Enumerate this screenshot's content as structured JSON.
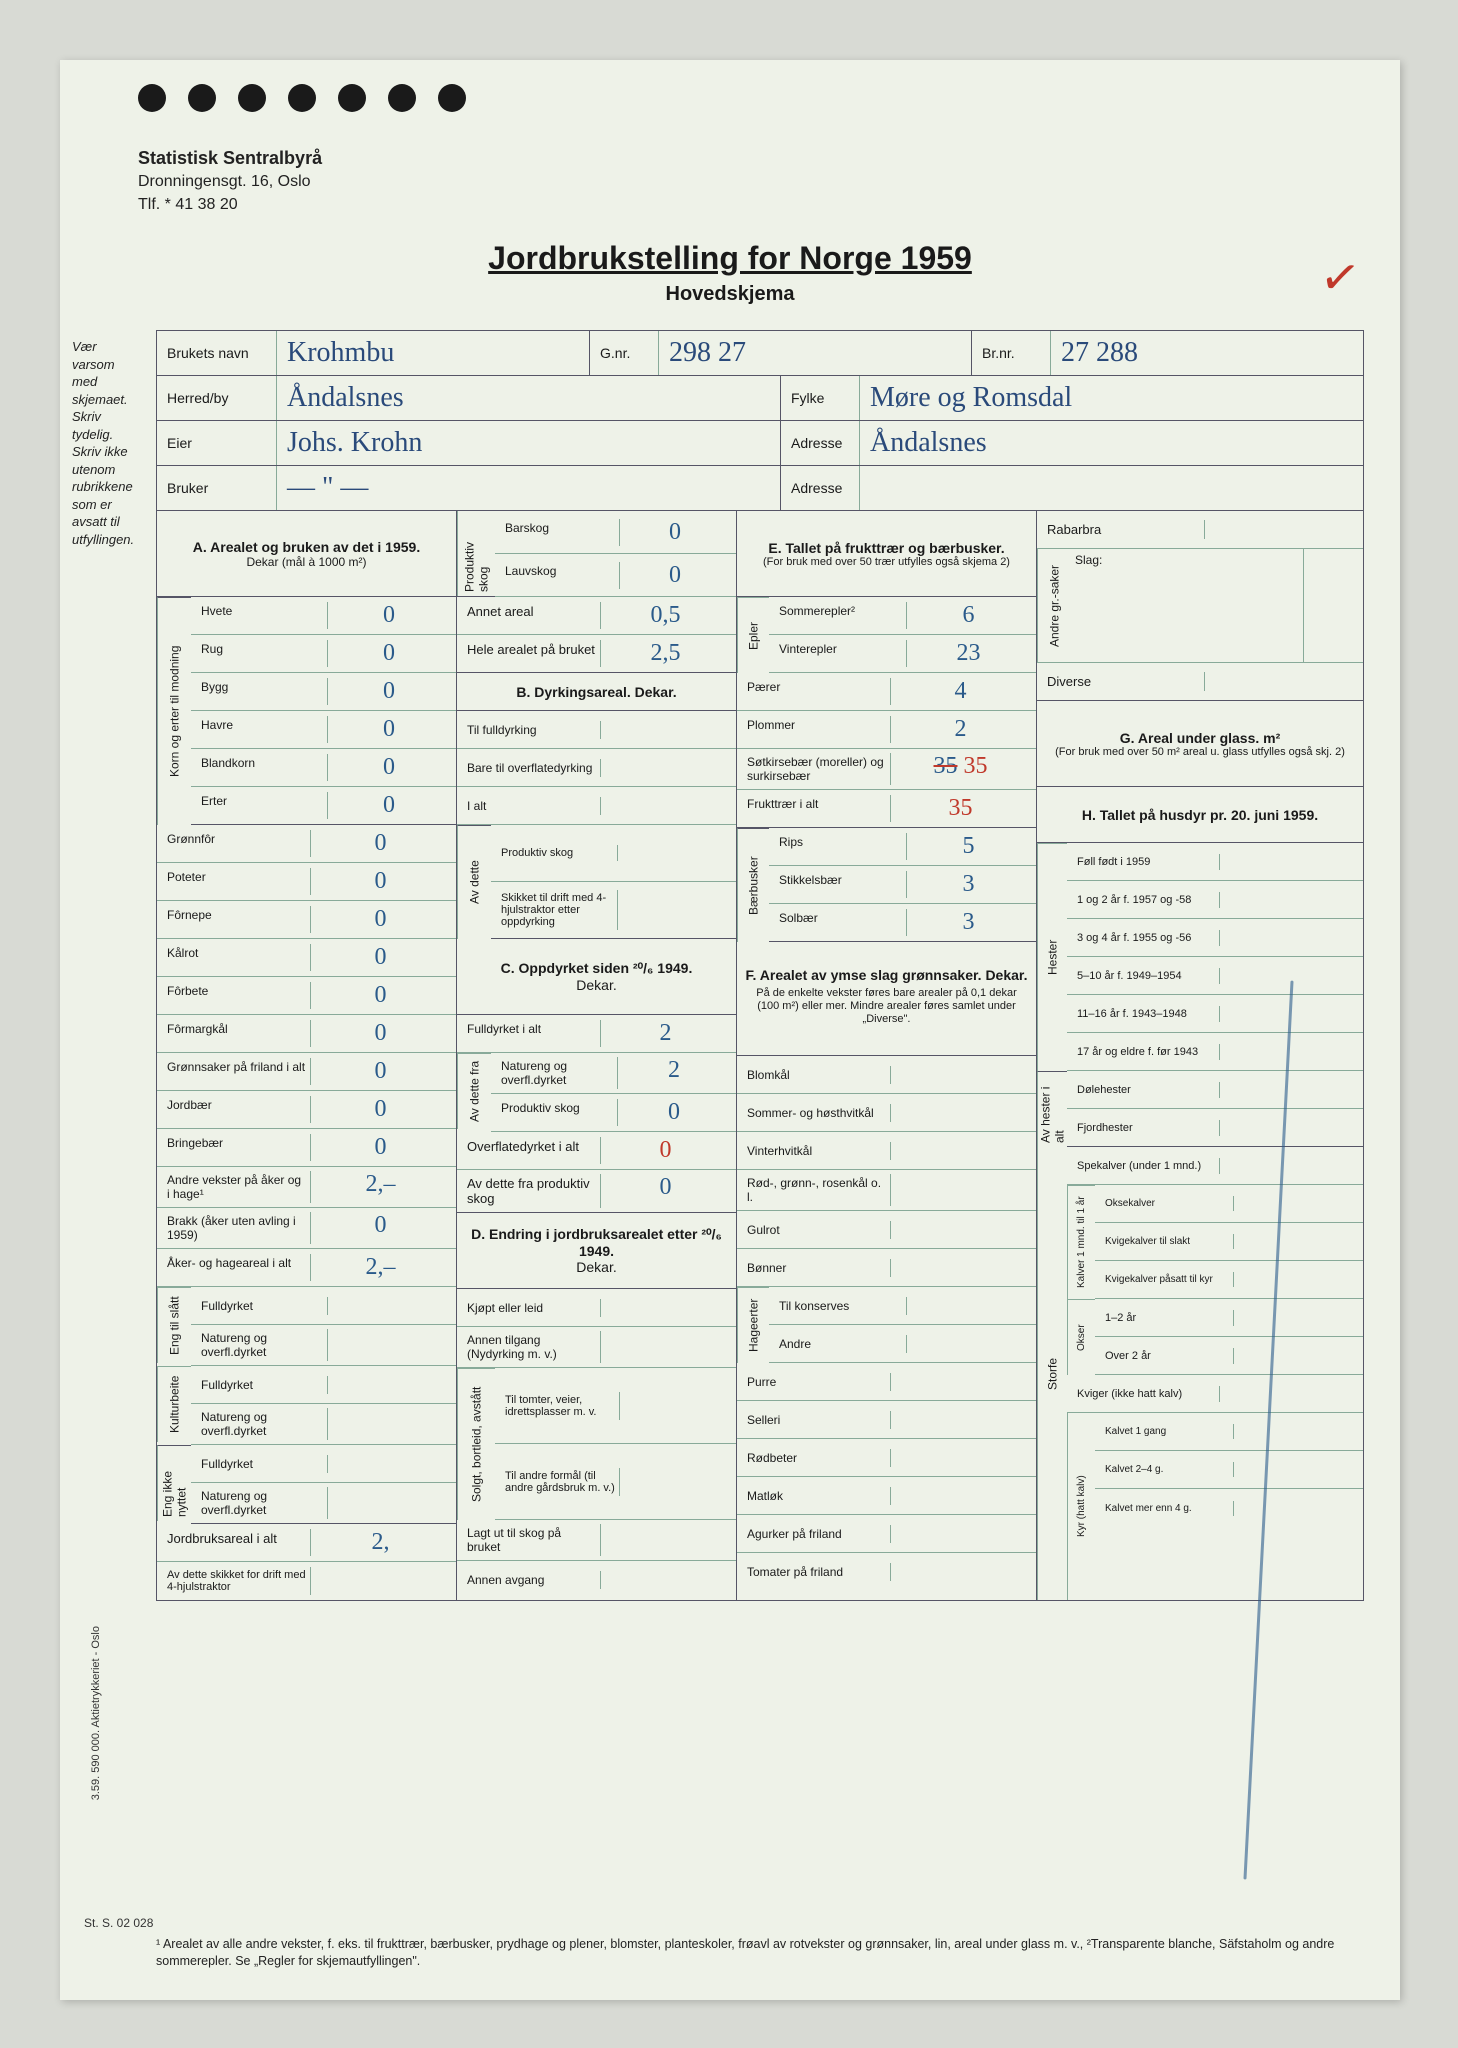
{
  "letterhead": {
    "org": "Statistisk Sentralbyrå",
    "addr": "Dronningensgt. 16, Oslo",
    "tel": "Tlf. * 41 38 20"
  },
  "title": {
    "main": "Jordbrukstelling for Norge 1959",
    "sub": "Hovedskjema"
  },
  "side_note": "Vær varsom med skjemaet.\nSkriv tydelig.\nSkriv ikke utenom rubrikkene som er avsatt til utfyllingen.",
  "header": {
    "brukets_navn_l": "Brukets navn",
    "brukets_navn": "Krohmbu",
    "gnr_l": "G.nr.",
    "gnr": "298  27",
    "brnr_l": "Br.nr.",
    "brnr": "27  288",
    "herred_l": "Herred/by",
    "herred": "Åndalsnes",
    "fylke_l": "Fylke",
    "fylke": "Møre og Romsdal",
    "eier_l": "Eier",
    "eier": "Johs. Krohn",
    "adresse_l": "Adresse",
    "adresse1": "Åndalsnes",
    "bruker_l": "Bruker",
    "bruker": "— \" —",
    "adresse2_l": "Adresse",
    "adresse2": ""
  },
  "A": {
    "head": "A. Arealet og bruken av det i 1959.",
    "sub": "Dekar (mål à 1000 m²)",
    "korn_label": "Korn og erter til modning",
    "rows": [
      {
        "l": "Hvete",
        "v": "0"
      },
      {
        "l": "Rug",
        "v": "0"
      },
      {
        "l": "Bygg",
        "v": "0"
      },
      {
        "l": "Havre",
        "v": "0"
      },
      {
        "l": "Blandkorn",
        "v": "0"
      },
      {
        "l": "Erter",
        "v": "0"
      }
    ],
    "rows2": [
      {
        "l": "Grønnfôr",
        "v": "0"
      },
      {
        "l": "Poteter",
        "v": "0"
      },
      {
        "l": "Fôrnepe",
        "v": "0"
      },
      {
        "l": "Kålrot",
        "v": "0"
      },
      {
        "l": "Fôrbete",
        "v": "0"
      },
      {
        "l": "Fôrmargkål",
        "v": "0"
      },
      {
        "l": "Grønnsaker på friland i alt",
        "v": "0"
      },
      {
        "l": "Jordbær",
        "v": "0"
      },
      {
        "l": "Bringebær",
        "v": "0"
      },
      {
        "l": "Andre vekster på åker og i hage¹",
        "v": "2,–"
      },
      {
        "l": "Brakk (åker uten avling i 1959)",
        "v": "0"
      },
      {
        "l": "Åker- og hageareal i alt",
        "v": "2,–"
      }
    ],
    "eng_label": "Eng til slått",
    "eng": [
      {
        "l": "Fulldyrket",
        "v": ""
      },
      {
        "l": "Natureng og overfl.dyrket",
        "v": ""
      }
    ],
    "kultur_label": "Kulturbeite",
    "kultur": [
      {
        "l": "Fulldyrket",
        "v": ""
      },
      {
        "l": "Natureng og overfl.dyrket",
        "v": ""
      }
    ],
    "ikke_label": "Eng ikke nyttet",
    "ikke": [
      {
        "l": "Fulldyrket",
        "v": ""
      },
      {
        "l": "Natureng og overfl.dyrket",
        "v": ""
      }
    ],
    "jordbruk": {
      "l": "Jordbruksareal i alt",
      "v": "2,"
    },
    "skikket": {
      "l": "Av dette skikket for drift med 4-hjulstraktor",
      "v": ""
    }
  },
  "Prod": {
    "label": "Produktiv skog",
    "rows": [
      {
        "l": "Barskog",
        "v": "0"
      },
      {
        "l": "Lauvskog",
        "v": "0"
      }
    ],
    "annet": {
      "l": "Annet areal",
      "v": "0,5"
    },
    "hele": {
      "l": "Hele arealet på bruket",
      "v": "2,5"
    }
  },
  "B": {
    "head": "B. Dyrkingsareal. Dekar.",
    "rows": [
      {
        "l": "Til fulldyrking",
        "v": ""
      },
      {
        "l": "Bare til overflatedyrking",
        "v": ""
      },
      {
        "l": "I alt",
        "v": ""
      }
    ],
    "av_label": "Av dette",
    "av": [
      {
        "l": "Produktiv skog",
        "v": ""
      },
      {
        "l": "Skikket til drift med 4-hjulstraktor etter oppdyrking",
        "v": ""
      }
    ]
  },
  "C": {
    "head": "C. Oppdyrket siden ²⁰/₆ 1949.",
    "sub": "Dekar.",
    "rows": [
      {
        "l": "Fulldyrket i alt",
        "v": "2"
      }
    ],
    "av_label": "Av dette fra",
    "av": [
      {
        "l": "Natureng og overfl.dyrket",
        "v": "2"
      },
      {
        "l": "Produktiv skog",
        "v": "0"
      }
    ],
    "over": {
      "l": "Overflatedyrket i alt",
      "v": "0"
    },
    "avprod": {
      "l": "Av dette fra produktiv skog",
      "v": "0"
    }
  },
  "D": {
    "head": "D. Endring i jordbruksarealet etter ²⁰/₆ 1949.",
    "sub": "Dekar.",
    "rows": [
      {
        "l": "Kjøpt eller leid",
        "v": ""
      },
      {
        "l": "Annen tilgang (Nydyrking m. v.)",
        "v": ""
      }
    ],
    "solgt_label": "Solgt, bortleid, avstått",
    "solgt": [
      {
        "l": "Til tomter, veier, idrettsplasser m. v.",
        "v": ""
      },
      {
        "l": "Til andre formål (til andre gårdsbruk m. v.)",
        "v": ""
      }
    ],
    "rows2": [
      {
        "l": "Lagt ut til skog på bruket",
        "v": ""
      },
      {
        "l": "Annen avgang",
        "v": ""
      }
    ]
  },
  "E": {
    "head": "E. Tallet på frukttrær og bærbusker.",
    "sub": "(For bruk med over 50 trær utfylles også skjema 2)",
    "epler_label": "Epler",
    "epler": [
      {
        "l": "Sommerepler²",
        "v": "6"
      },
      {
        "l": "Vinterepler",
        "v": "23"
      }
    ],
    "rows": [
      {
        "l": "Pærer",
        "v": "4"
      },
      {
        "l": "Plommer",
        "v": "2"
      },
      {
        "l": "Søtkirsebær (moreller) og surkirsebær",
        "v": "35",
        "struck": "35"
      },
      {
        "l": "Frukttrær i alt",
        "v": "35",
        "red": true
      }
    ],
    "busk_label": "Bærbusker",
    "busk": [
      {
        "l": "Rips",
        "v": "5"
      },
      {
        "l": "Stikkelsbær",
        "v": "3"
      },
      {
        "l": "Solbær",
        "v": "3"
      }
    ]
  },
  "F": {
    "head": "F. Arealet av ymse slag grønnsaker. Dekar.",
    "sub": "På de enkelte vekster føres bare arealer på 0,1 dekar (100 m²) eller mer. Mindre arealer føres samlet under „Diverse\".",
    "rows": [
      {
        "l": "Blomkål",
        "v": ""
      },
      {
        "l": "Sommer- og høsthvitkål",
        "v": ""
      },
      {
        "l": "Vinterhvitkål",
        "v": ""
      },
      {
        "l": "Rød-, grønn-, rosenkål o. l.",
        "v": ""
      },
      {
        "l": "Gulrot",
        "v": ""
      },
      {
        "l": "Bønner",
        "v": ""
      }
    ],
    "hage_label": "Hageerter",
    "hage": [
      {
        "l": "Til konserves",
        "v": ""
      },
      {
        "l": "Andre",
        "v": ""
      }
    ],
    "rows2": [
      {
        "l": "Purre",
        "v": ""
      },
      {
        "l": "Selleri",
        "v": ""
      },
      {
        "l": "Rødbeter",
        "v": ""
      },
      {
        "l": "Matløk",
        "v": ""
      },
      {
        "l": "Agurker på friland",
        "v": ""
      },
      {
        "l": "Tomater på friland",
        "v": ""
      }
    ]
  },
  "Right": {
    "rabarbra": "Rabarbra",
    "andre_label": "Andre gr.-saker",
    "slag": "Slag:",
    "diverse": "Diverse",
    "G_head": "G. Areal under glass. m²",
    "G_sub": "(For bruk med over 50 m² areal u. glass utfylles også skj. 2)",
    "H_head": "H. Tallet på husdyr pr. 20. juni 1959.",
    "hester_label": "Hester",
    "hester": [
      {
        "l": "Føll født i 1959",
        "v": ""
      },
      {
        "l": "1 og 2 år f. 1957 og -58",
        "v": ""
      },
      {
        "l": "3 og 4 år f. 1955 og -56",
        "v": ""
      },
      {
        "l": "5–10 år f. 1949–1954",
        "v": ""
      },
      {
        "l": "11–16 år f. 1943–1948",
        "v": ""
      },
      {
        "l": "17 år og eldre f. før 1943",
        "v": ""
      }
    ],
    "avhest_label": "Av hester i alt",
    "avhest": [
      {
        "l": "Dølehester",
        "v": ""
      },
      {
        "l": "Fjordhester",
        "v": ""
      }
    ],
    "storfe_label": "Storfe",
    "spe": {
      "l": "Spekalver (under 1 mnd.)",
      "v": ""
    },
    "kalv_label": "Kalver 1 mnd. til 1 år",
    "kalv": [
      {
        "l": "Oksekalver",
        "v": ""
      },
      {
        "l": "Kvigekalver til slakt",
        "v": ""
      },
      {
        "l": "Kvigekalver påsatt til kyr",
        "v": ""
      }
    ],
    "okser_label": "Okser",
    "okser": [
      {
        "l": "1–2 år",
        "v": ""
      },
      {
        "l": "Over 2 år",
        "v": ""
      }
    ],
    "kviger": {
      "l": "Kviger (ikke hatt kalv)",
      "v": ""
    },
    "kyr_label": "Kyr (hatt kalv)",
    "kyr": [
      {
        "l": "Kalvet 1 gang",
        "v": ""
      },
      {
        "l": "Kalvet 2–4 g.",
        "v": ""
      },
      {
        "l": "Kalvet mer enn 4 g.",
        "v": ""
      }
    ]
  },
  "footnote": "¹ Arealet av alle andre vekster, f. eks. til frukttrær, bærbusker, prydhage og plener, blomster, planteskoler, frøavl av rotvekster og grønnsaker, lin, areal under glass m. v., ²Transparente blanche, Säfstaholm og andre sommerepler. Se „Regler for skjemautfyllingen\".",
  "side_print": "3.59. 590 000. Aktietrykkeriet - Oslo",
  "form_num": "St. S. 02 028"
}
